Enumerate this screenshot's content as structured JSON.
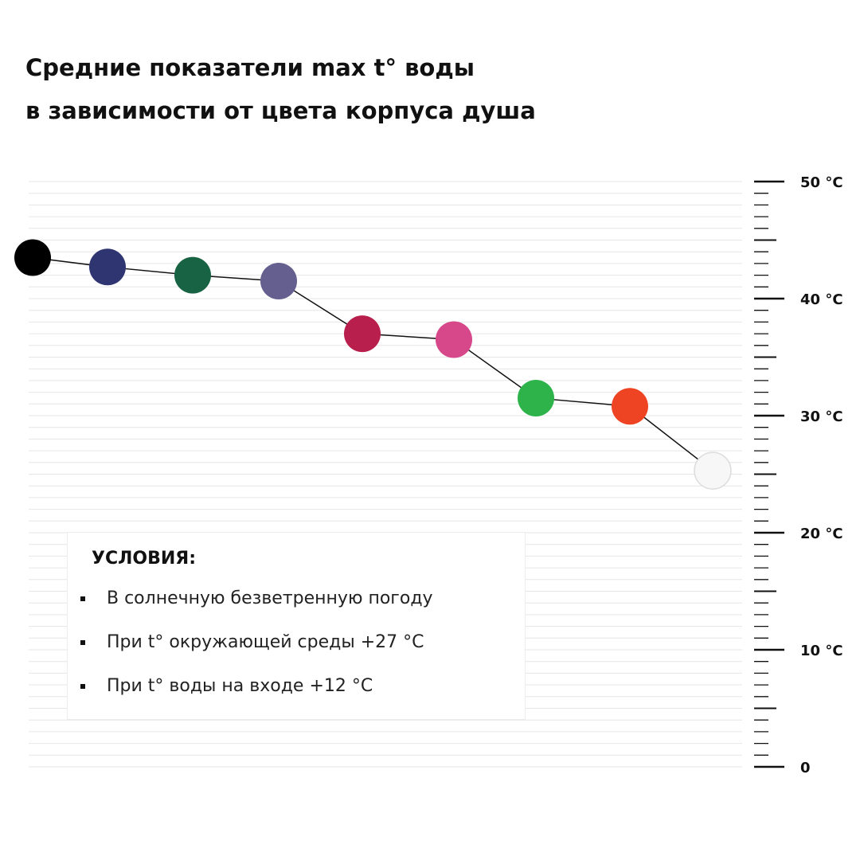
{
  "title": {
    "line1": "Средние показатели max t° воды",
    "line2": "в зависимости от цвета корпуса душа"
  },
  "chart_data": {
    "type": "line",
    "ylim": [
      0,
      50
    ],
    "y_ticks": [
      "0",
      "10 °C",
      "20 °C",
      "30 °C",
      "40 °C",
      "50 °C"
    ],
    "y_tick_values": [
      0,
      10,
      20,
      30,
      40,
      50
    ],
    "minor_step": 1,
    "grid": true,
    "axis_side": "right",
    "series": [
      {
        "points": [
          {
            "value": 43.5,
            "color": "#000000"
          },
          {
            "value": 42.7,
            "color": "#2f3571"
          },
          {
            "value": 42.0,
            "color": "#186343"
          },
          {
            "value": 41.5,
            "color": "#645f8e"
          },
          {
            "value": 37.0,
            "color": "#b81f4c"
          },
          {
            "value": 36.5,
            "color": "#d6488a"
          },
          {
            "value": 31.5,
            "color": "#2db34a"
          },
          {
            "value": 30.8,
            "color": "#ee4423"
          },
          {
            "value": 25.3,
            "color": "#f7f7f7"
          }
        ]
      }
    ]
  },
  "conditions": {
    "title": "УСЛОВИЯ:",
    "items": [
      "В солнечную безветренную погоду",
      "При t° окружающей среды +27 °С",
      "При t° воды на входе +12 °С"
    ]
  }
}
